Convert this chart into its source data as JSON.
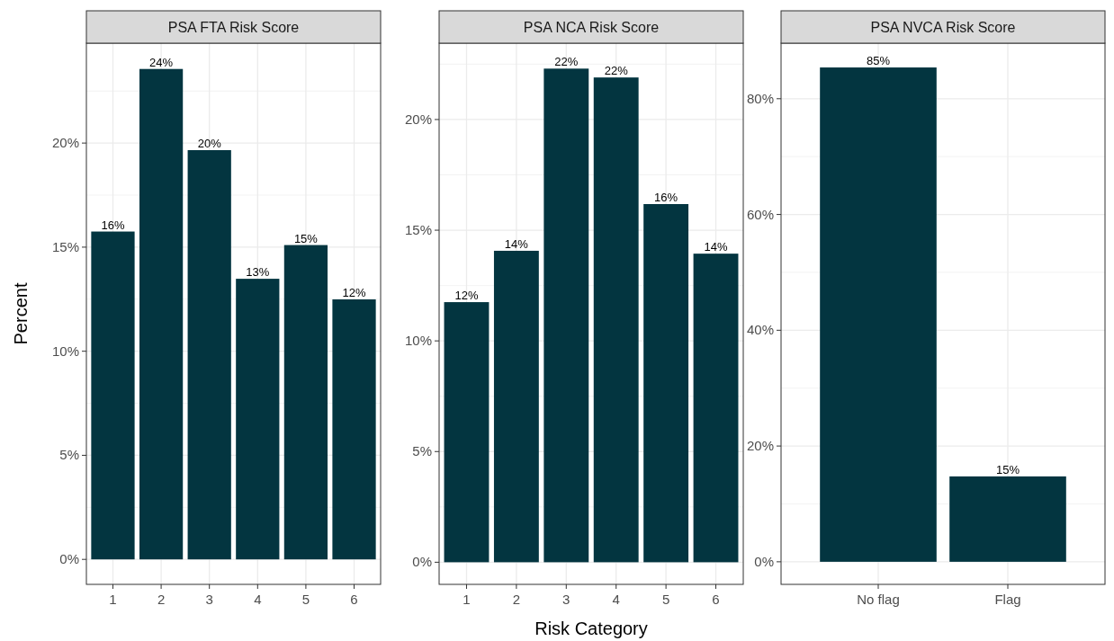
{
  "chart_data": [
    {
      "type": "bar",
      "title": "PSA FTA Risk Score",
      "ylabel": "Percent",
      "categories": [
        "1",
        "2",
        "3",
        "4",
        "5",
        "6"
      ],
      "values": [
        15.75,
        23.56,
        19.66,
        13.48,
        15.1,
        12.49
      ],
      "value_labels": [
        "16%",
        "24%",
        "20%",
        "13%",
        "15%",
        "12%"
      ],
      "color": "#033540",
      "ylim": [
        -1.2,
        24.8
      ],
      "yticks": [
        {
          "value": 0,
          "label": "0%"
        },
        {
          "value": 5,
          "label": "5%"
        },
        {
          "value": 10,
          "label": "10%"
        },
        {
          "value": 15,
          "label": "15%"
        },
        {
          "value": 20,
          "label": "20%"
        }
      ],
      "grid": true
    },
    {
      "type": "bar",
      "title": "PSA NCA Risk Score",
      "xlabel": "Risk Category",
      "categories": [
        "1",
        "2",
        "3",
        "4",
        "5",
        "6"
      ],
      "values": [
        11.75,
        14.07,
        22.3,
        21.9,
        16.18,
        13.94
      ],
      "value_labels": [
        "12%",
        "14%",
        "22%",
        "22%",
        "16%",
        "14%"
      ],
      "color": "#033540",
      "ylim": [
        -1.0,
        23.45
      ],
      "yticks": [
        {
          "value": 0,
          "label": "0%"
        },
        {
          "value": 5,
          "label": "5%"
        },
        {
          "value": 10,
          "label": "10%"
        },
        {
          "value": 15,
          "label": "15%"
        },
        {
          "value": 20,
          "label": "20%"
        }
      ],
      "grid": true
    },
    {
      "type": "bar",
      "title": "PSA NVCA Risk Score",
      "categories": [
        "No flag",
        "Flag"
      ],
      "values": [
        85.4,
        14.75
      ],
      "value_labels": [
        "85%",
        "15%"
      ],
      "color": "#033540",
      "ylim": [
        -3.9,
        89.6
      ],
      "yticks": [
        {
          "value": 0,
          "label": "0%"
        },
        {
          "value": 20,
          "label": "20%"
        },
        {
          "value": 40,
          "label": "40%"
        },
        {
          "value": 60,
          "label": "60%"
        },
        {
          "value": 80,
          "label": "80%"
        }
      ],
      "grid": true
    }
  ]
}
